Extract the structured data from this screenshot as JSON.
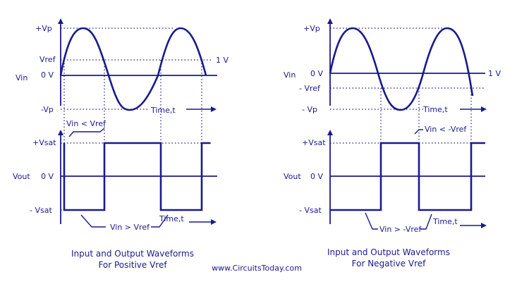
{
  "colors": {
    "ink": "#1a1a8c",
    "background": "#ffffff"
  },
  "left": {
    "in_plus_vp": "+Vp",
    "in_vref": "Vref",
    "in_one_v": "1 V",
    "in_vin": "Vin",
    "in_zero": "0 V",
    "in_minus_vp": "-Vp",
    "in_time": "Time,t",
    "note_lt": "Vin < Vref",
    "out_plus_vsat": "+Vsat",
    "out_vout": "Vout",
    "out_zero": "0 V",
    "out_minus_vsat": "- Vsat",
    "note_gt": "Vin > Vref",
    "out_time": "Time,t",
    "caption_line1": "Input and Output Waveforms",
    "caption_line2": "For Positive Vref"
  },
  "right": {
    "in_plus_vp": "+Vp",
    "in_vin": "Vin",
    "in_zero": "0 V",
    "in_one_v": "1 V",
    "in_minus_vref": "- Vref",
    "in_minus_vp": "- Vp",
    "in_time": "Time,t",
    "note_lt": "Vin < -Vref",
    "out_plus_vsat": "+Vsat",
    "out_vout": "Vout",
    "out_zero": "0 V",
    "out_minus_vsat": "- Vsat",
    "note_gt": "Vin > -Vref",
    "out_time": "Time,t",
    "caption_line1": "Input and Output Waveforms",
    "caption_line2": "For Negative Vref"
  },
  "source": "www.CircuitsToday.com"
}
